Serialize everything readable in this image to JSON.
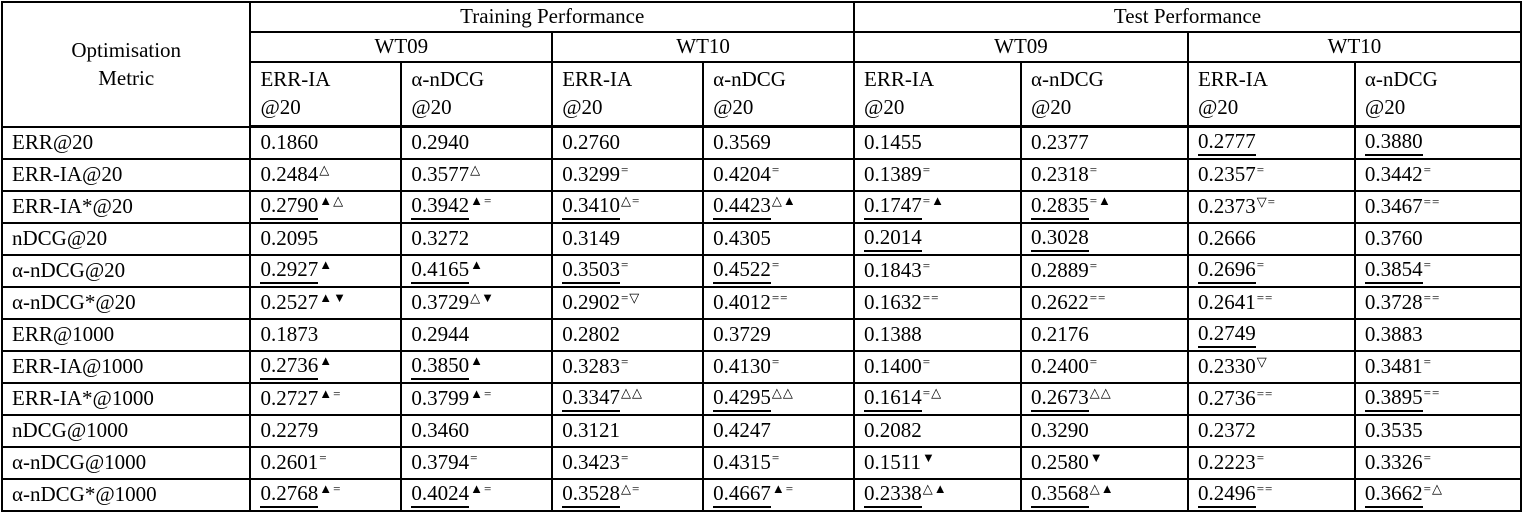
{
  "page": {
    "background": "#ffffff",
    "text_color": "#000000",
    "border_color": "#000000"
  },
  "table": {
    "corner_label_line1": "Optimisation",
    "corner_label_line2": "Metric",
    "groups": [
      "Training Performance",
      "Test Performance"
    ],
    "datasets": [
      "WT09",
      "WT10",
      "WT09",
      "WT10"
    ],
    "metric_cols": [
      {
        "l1": "ERR-IA",
        "l2": "@20"
      },
      {
        "l1": "α-nDCG",
        "l2": "@20"
      },
      {
        "l1": "ERR-IA",
        "l2": "@20"
      },
      {
        "l1": "α-nDCG",
        "l2": "@20"
      },
      {
        "l1": "ERR-IA",
        "l2": "@20"
      },
      {
        "l1": "α-nDCG",
        "l2": "@20"
      },
      {
        "l1": "ERR-IA",
        "l2": "@20"
      },
      {
        "l1": "α-nDCG",
        "l2": "@20"
      }
    ],
    "legend_symbols": {
      "up_filled": "▲",
      "up_open": "△",
      "down_filled": "▼",
      "down_open": "▽",
      "no_change": "="
    },
    "rows": [
      {
        "label": "ERR@20",
        "group_start": false,
        "cells": [
          {
            "v": "0.1860",
            "sup": "",
            "u": false
          },
          {
            "v": "0.2940",
            "sup": "",
            "u": false
          },
          {
            "v": "0.2760",
            "sup": "",
            "u": false
          },
          {
            "v": "0.3569",
            "sup": "",
            "u": false
          },
          {
            "v": "0.1455",
            "sup": "",
            "u": false
          },
          {
            "v": "0.2377",
            "sup": "",
            "u": false
          },
          {
            "v": "0.2777",
            "sup": "",
            "u": true
          },
          {
            "v": "0.3880",
            "sup": "",
            "u": true
          }
        ]
      },
      {
        "label": "ERR-IA@20",
        "group_start": false,
        "cells": [
          {
            "v": "0.2484",
            "sup": "△",
            "u": false
          },
          {
            "v": "0.3577",
            "sup": "△",
            "u": false
          },
          {
            "v": "0.3299",
            "sup": "=",
            "u": false
          },
          {
            "v": "0.4204",
            "sup": "=",
            "u": false
          },
          {
            "v": "0.1389",
            "sup": "=",
            "u": false
          },
          {
            "v": "0.2318",
            "sup": "=",
            "u": false
          },
          {
            "v": "0.2357",
            "sup": "=",
            "u": false
          },
          {
            "v": "0.3442",
            "sup": "=",
            "u": false
          }
        ]
      },
      {
        "label": "ERR-IA*@20",
        "group_start": false,
        "cells": [
          {
            "v": "0.2790",
            "sup": "▲△",
            "u": true
          },
          {
            "v": "0.3942",
            "sup": "▲=",
            "u": true
          },
          {
            "v": "0.3410",
            "sup": "△=",
            "u": true
          },
          {
            "v": "0.4423",
            "sup": "△▲",
            "u": true
          },
          {
            "v": "0.1747",
            "sup": "=▲",
            "u": true
          },
          {
            "v": "0.2835",
            "sup": "=▲",
            "u": true
          },
          {
            "v": "0.2373",
            "sup": "▽=",
            "u": false
          },
          {
            "v": "0.3467",
            "sup": "==",
            "u": false
          }
        ]
      },
      {
        "label": "nDCG@20",
        "group_start": true,
        "cells": [
          {
            "v": "0.2095",
            "sup": "",
            "u": false
          },
          {
            "v": "0.3272",
            "sup": "",
            "u": false
          },
          {
            "v": "0.3149",
            "sup": "",
            "u": false
          },
          {
            "v": "0.4305",
            "sup": "",
            "u": false
          },
          {
            "v": "0.2014",
            "sup": "",
            "u": true
          },
          {
            "v": "0.3028",
            "sup": "",
            "u": true
          },
          {
            "v": "0.2666",
            "sup": "",
            "u": false
          },
          {
            "v": "0.3760",
            "sup": "",
            "u": false
          }
        ]
      },
      {
        "label": "α-nDCG@20",
        "group_start": false,
        "cells": [
          {
            "v": "0.2927",
            "sup": "▲",
            "u": true
          },
          {
            "v": "0.4165",
            "sup": "▲",
            "u": true
          },
          {
            "v": "0.3503",
            "sup": "=",
            "u": true
          },
          {
            "v": "0.4522",
            "sup": "=",
            "u": true
          },
          {
            "v": "0.1843",
            "sup": "=",
            "u": false
          },
          {
            "v": "0.2889",
            "sup": "=",
            "u": false
          },
          {
            "v": "0.2696",
            "sup": "=",
            "u": true
          },
          {
            "v": "0.3854",
            "sup": "=",
            "u": true
          }
        ]
      },
      {
        "label": "α-nDCG*@20",
        "group_start": false,
        "cells": [
          {
            "v": "0.2527",
            "sup": "▲▼",
            "u": false
          },
          {
            "v": "0.3729",
            "sup": "△▼",
            "u": false
          },
          {
            "v": "0.2902",
            "sup": "=▽",
            "u": false
          },
          {
            "v": "0.4012",
            "sup": "==",
            "u": false
          },
          {
            "v": "0.1632",
            "sup": "==",
            "u": false
          },
          {
            "v": "0.2622",
            "sup": "==",
            "u": false
          },
          {
            "v": "0.2641",
            "sup": "==",
            "u": false
          },
          {
            "v": "0.3728",
            "sup": "==",
            "u": false
          }
        ]
      },
      {
        "label": "ERR@1000",
        "group_start": true,
        "cells": [
          {
            "v": "0.1873",
            "sup": "",
            "u": false
          },
          {
            "v": "0.2944",
            "sup": "",
            "u": false
          },
          {
            "v": "0.2802",
            "sup": "",
            "u": false
          },
          {
            "v": "0.3729",
            "sup": "",
            "u": false
          },
          {
            "v": "0.1388",
            "sup": "",
            "u": false
          },
          {
            "v": "0.2176",
            "sup": "",
            "u": false
          },
          {
            "v": "0.2749",
            "sup": "",
            "u": true
          },
          {
            "v": "0.3883",
            "sup": "",
            "u": false
          }
        ]
      },
      {
        "label": "ERR-IA@1000",
        "group_start": false,
        "cells": [
          {
            "v": "0.2736",
            "sup": "▲",
            "u": true
          },
          {
            "v": "0.3850",
            "sup": "▲",
            "u": true
          },
          {
            "v": "0.3283",
            "sup": "=",
            "u": false
          },
          {
            "v": "0.4130",
            "sup": "=",
            "u": false
          },
          {
            "v": "0.1400",
            "sup": "=",
            "u": false
          },
          {
            "v": "0.2400",
            "sup": "=",
            "u": false
          },
          {
            "v": "0.2330",
            "sup": "▽",
            "u": false
          },
          {
            "v": "0.3481",
            "sup": "=",
            "u": false
          }
        ]
      },
      {
        "label": "ERR-IA*@1000",
        "group_start": false,
        "cells": [
          {
            "v": "0.2727",
            "sup": "▲=",
            "u": false
          },
          {
            "v": "0.3799",
            "sup": "▲=",
            "u": false
          },
          {
            "v": "0.3347",
            "sup": "△△",
            "u": true
          },
          {
            "v": "0.4295",
            "sup": "△△",
            "u": true
          },
          {
            "v": "0.1614",
            "sup": "=△",
            "u": true
          },
          {
            "v": "0.2673",
            "sup": "△△",
            "u": true
          },
          {
            "v": "0.2736",
            "sup": "==",
            "u": false
          },
          {
            "v": "0.3895",
            "sup": "==",
            "u": true
          }
        ]
      },
      {
        "label": "nDCG@1000",
        "group_start": true,
        "cells": [
          {
            "v": "0.2279",
            "sup": "",
            "u": false
          },
          {
            "v": "0.3460",
            "sup": "",
            "u": false
          },
          {
            "v": "0.3121",
            "sup": "",
            "u": false
          },
          {
            "v": "0.4247",
            "sup": "",
            "u": false
          },
          {
            "v": "0.2082",
            "sup": "",
            "u": false
          },
          {
            "v": "0.3290",
            "sup": "",
            "u": false
          },
          {
            "v": "0.2372",
            "sup": "",
            "u": false
          },
          {
            "v": "0.3535",
            "sup": "",
            "u": false
          }
        ]
      },
      {
        "label": "α-nDCG@1000",
        "group_start": false,
        "cells": [
          {
            "v": "0.2601",
            "sup": "=",
            "u": false
          },
          {
            "v": "0.3794",
            "sup": "=",
            "u": false
          },
          {
            "v": "0.3423",
            "sup": "=",
            "u": false
          },
          {
            "v": "0.4315",
            "sup": "=",
            "u": false
          },
          {
            "v": "0.1511",
            "sup": "▼",
            "u": false
          },
          {
            "v": "0.2580",
            "sup": "▼",
            "u": false
          },
          {
            "v": "0.2223",
            "sup": "=",
            "u": false
          },
          {
            "v": "0.3326",
            "sup": "=",
            "u": false
          }
        ]
      },
      {
        "label": "α-nDCG*@1000",
        "group_start": false,
        "cells": [
          {
            "v": "0.2768",
            "sup": "▲=",
            "u": true
          },
          {
            "v": "0.4024",
            "sup": "▲=",
            "u": true
          },
          {
            "v": "0.3528",
            "sup": "△=",
            "u": true
          },
          {
            "v": "0.4667",
            "sup": "▲=",
            "u": true
          },
          {
            "v": "0.2338",
            "sup": "△▲",
            "u": true
          },
          {
            "v": "0.3568",
            "sup": "△▲",
            "u": true
          },
          {
            "v": "0.2496",
            "sup": "==",
            "u": true
          },
          {
            "v": "0.3662",
            "sup": "=△",
            "u": true
          }
        ]
      }
    ]
  }
}
